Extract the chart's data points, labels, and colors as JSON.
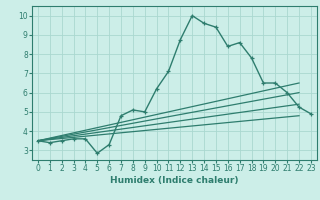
{
  "xlabel": "Humidex (Indice chaleur)",
  "background_color": "#cceee8",
  "grid_color": "#aad8d0",
  "line_color": "#2e7d6e",
  "xlim": [
    -0.5,
    23.5
  ],
  "ylim": [
    2.5,
    10.5
  ],
  "xticks": [
    0,
    1,
    2,
    3,
    4,
    5,
    6,
    7,
    8,
    9,
    10,
    11,
    12,
    13,
    14,
    15,
    16,
    17,
    18,
    19,
    20,
    21,
    22,
    23
  ],
  "yticks": [
    3,
    4,
    5,
    6,
    7,
    8,
    9,
    10
  ],
  "main_line": {
    "x": [
      0,
      1,
      2,
      3,
      4,
      5,
      6,
      7,
      8,
      9,
      10,
      11,
      12,
      13,
      14,
      15,
      16,
      17,
      18,
      19,
      20,
      21,
      22,
      23
    ],
    "y": [
      3.5,
      3.4,
      3.5,
      3.6,
      3.6,
      2.85,
      3.3,
      4.8,
      5.1,
      5.0,
      6.2,
      7.1,
      8.75,
      10.0,
      9.6,
      9.4,
      8.4,
      8.6,
      7.8,
      6.5,
      6.5,
      6.0,
      5.25,
      4.9
    ]
  },
  "straight_lines": [
    {
      "x": [
        0,
        22
      ],
      "y": [
        3.5,
        6.5
      ]
    },
    {
      "x": [
        0,
        22
      ],
      "y": [
        3.5,
        6.0
      ]
    },
    {
      "x": [
        0,
        22
      ],
      "y": [
        3.5,
        5.4
      ]
    },
    {
      "x": [
        0,
        22
      ],
      "y": [
        3.5,
        4.8
      ]
    }
  ]
}
